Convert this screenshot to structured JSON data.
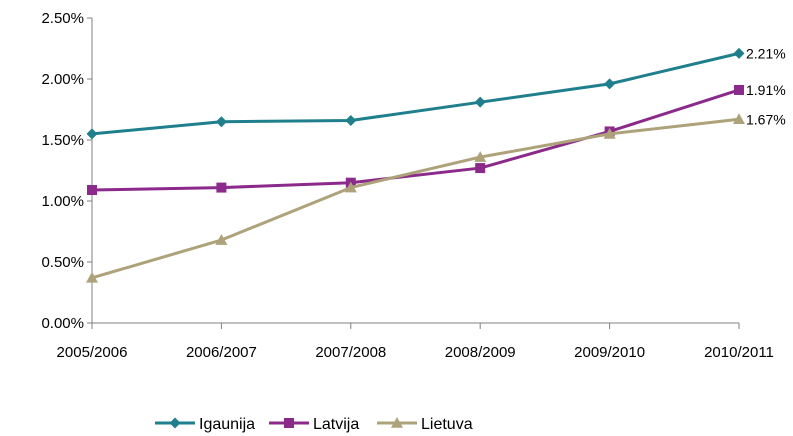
{
  "chart_data": {
    "type": "line",
    "categories": [
      "2005/2006",
      "2006/2007",
      "2007/2008",
      "2008/2009",
      "2009/2010",
      "2010/2011"
    ],
    "ylim": [
      0,
      0.025
    ],
    "yticks": [
      "0.00%",
      "0.50%",
      "1.00%",
      "1.50%",
      "2.00%",
      "2.50%"
    ],
    "grid": false,
    "legend_position": "bottom",
    "series": [
      {
        "name": "Igaunija",
        "color": "#1f7f8c",
        "marker": "diamond",
        "values": [
          0.0155,
          0.0165,
          0.0166,
          0.0181,
          0.0196,
          0.0221
        ],
        "end_label": "2.21%"
      },
      {
        "name": "Latvija",
        "color": "#8b2a8b",
        "marker": "square",
        "values": [
          0.0109,
          0.0111,
          0.0115,
          0.0127,
          0.0157,
          0.0191
        ],
        "end_label": "1.91%"
      },
      {
        "name": "Lietuva",
        "color": "#ada27a",
        "marker": "triangle",
        "values": [
          0.0037,
          0.0068,
          0.0111,
          0.0136,
          0.0155,
          0.0167
        ],
        "end_label": "1.67%"
      }
    ]
  }
}
